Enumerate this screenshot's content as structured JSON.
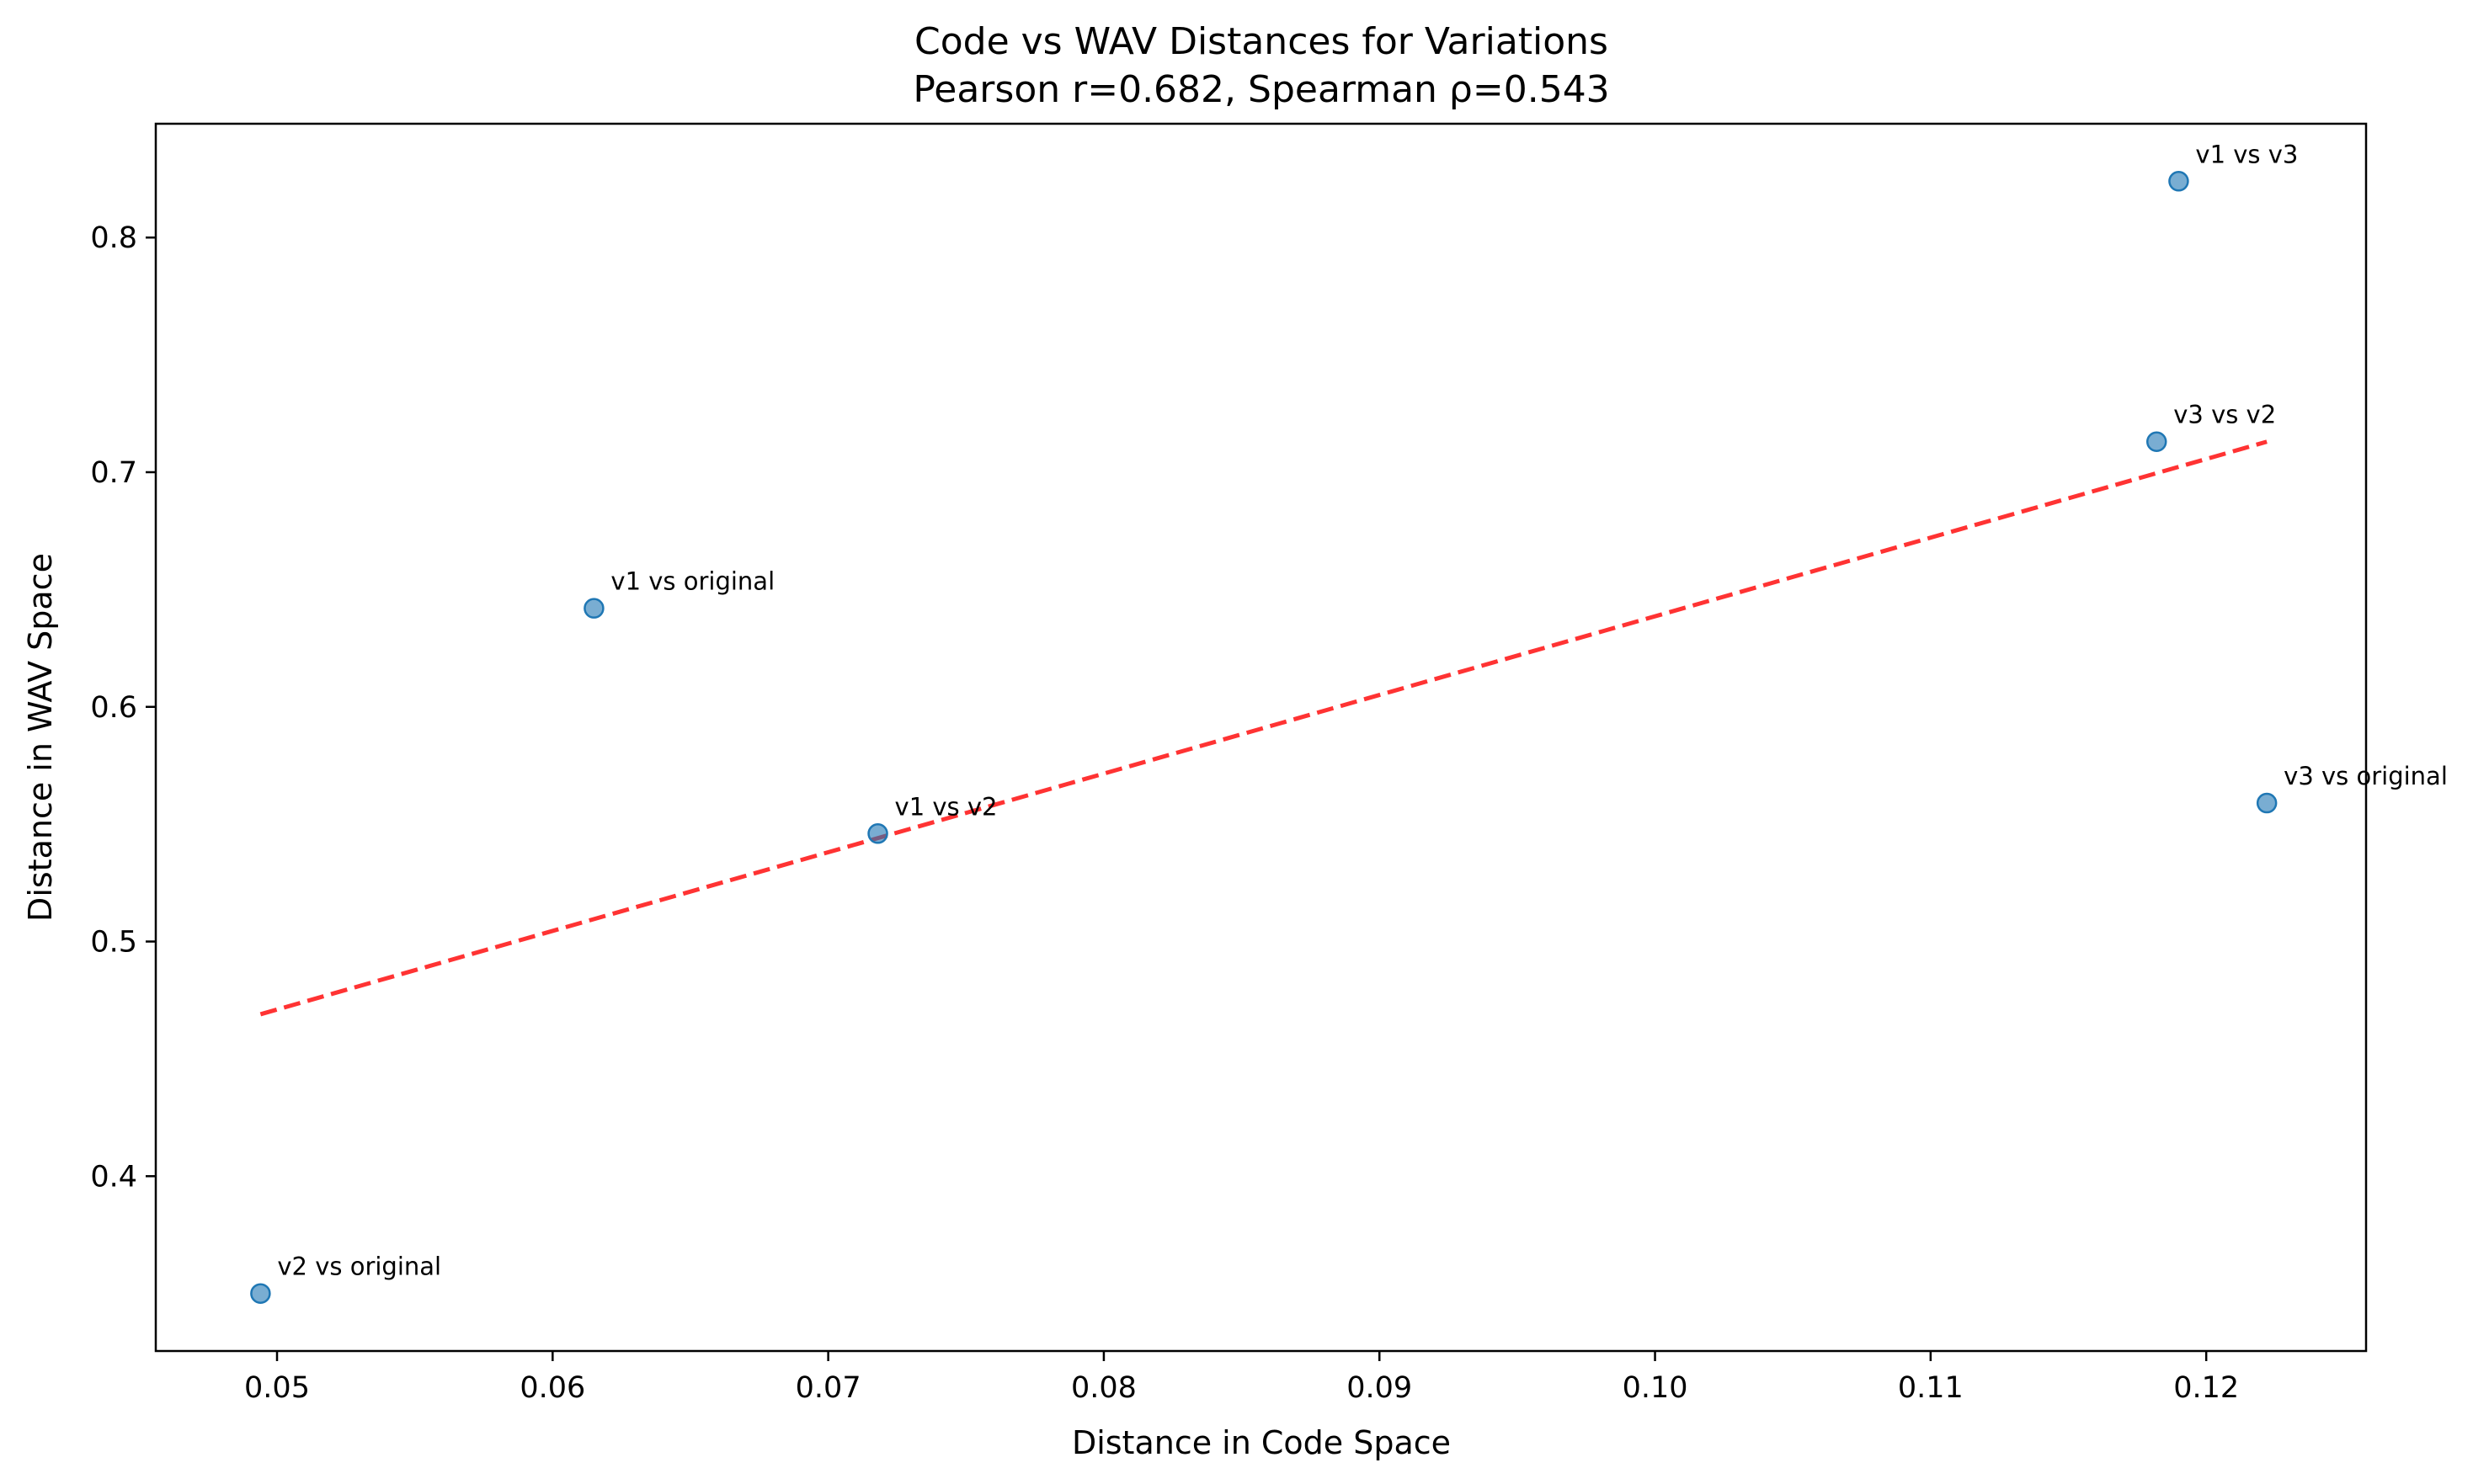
{
  "chart_data": {
    "type": "scatter",
    "title": "Code vs WAV Distances for Variations",
    "subtitle": "Pearson r=0.682, Spearman ρ=0.543",
    "xlabel": "Distance in Code Space",
    "ylabel": "Distance in WAV Space",
    "xlim": [
      0.0456,
      0.1258
    ],
    "ylim": [
      0.3255,
      0.8485
    ],
    "xticks": [
      0.05,
      0.06,
      0.07,
      0.08,
      0.09,
      0.1,
      0.11,
      0.12
    ],
    "xtick_labels": [
      "0.05",
      "0.06",
      "0.07",
      "0.08",
      "0.09",
      "0.10",
      "0.11",
      "0.12"
    ],
    "yticks": [
      0.4,
      0.5,
      0.6,
      0.7,
      0.8
    ],
    "ytick_labels": [
      "0.4",
      "0.5",
      "0.6",
      "0.7",
      "0.8"
    ],
    "grid": false,
    "points": [
      {
        "x": 0.0494,
        "y": 0.35,
        "label": "v2 vs original"
      },
      {
        "x": 0.0615,
        "y": 0.642,
        "label": "v1 vs original"
      },
      {
        "x": 0.0718,
        "y": 0.546,
        "label": "v1 vs v2"
      },
      {
        "x": 0.1182,
        "y": 0.713,
        "label": "v3 vs v2"
      },
      {
        "x": 0.119,
        "y": 0.824,
        "label": "v1 vs v3"
      },
      {
        "x": 0.1222,
        "y": 0.559,
        "label": "v3 vs original"
      }
    ],
    "trendline": {
      "x": [
        0.0494,
        0.1222
      ],
      "y": [
        0.469,
        0.713
      ],
      "color": "#ff0000",
      "style": "dashed"
    },
    "point_color": "#1f77b4"
  }
}
